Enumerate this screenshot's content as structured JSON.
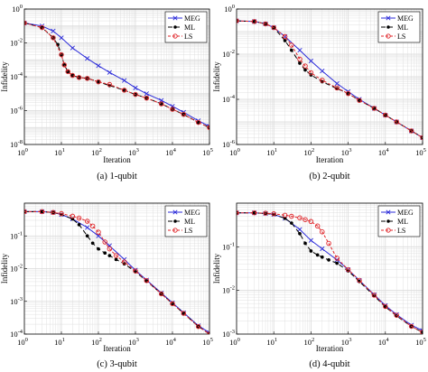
{
  "colors": {
    "MEG": "#2b2bd9",
    "ML": "#000000",
    "LS": "#e0262a",
    "grid": "#d9d9d9"
  },
  "chart_data": [
    {
      "type": "line",
      "caption": "(a)  1-qubit",
      "xlabel": "Iteration",
      "ylabel": "Infidelity",
      "xscale": "log",
      "yscale": "log",
      "xlim": [
        1,
        100000
      ],
      "ylim": [
        1e-08,
        1
      ],
      "xticks": [
        {
          "v": 1,
          "e": "0"
        },
        {
          "v": 10,
          "e": "1"
        },
        {
          "v": 100,
          "e": "2"
        },
        {
          "v": 1000,
          "e": "3"
        },
        {
          "v": 10000,
          "e": "4"
        },
        {
          "v": 100000,
          "e": "5"
        }
      ],
      "yticks": [
        {
          "v": 1,
          "e": "0"
        },
        {
          "v": 0.01,
          "e": "-2"
        },
        {
          "v": 0.0001,
          "e": "-4"
        },
        {
          "v": 1e-06,
          "e": "-6"
        },
        {
          "v": 1e-08,
          "e": "-8"
        }
      ],
      "grid": true,
      "legend_position": "top-right",
      "series": [
        {
          "name": "MEG",
          "key": "MEG",
          "marker": "x",
          "dash": "",
          "x": [
            1,
            3,
            6,
            10,
            20,
            50,
            100,
            200,
            500,
            1000,
            2000,
            5000,
            10000,
            20000,
            50000,
            100000
          ],
          "y": [
            0.15,
            0.1,
            0.05,
            0.02,
            0.005,
            0.0012,
            0.00045,
            0.00018,
            6e-05,
            2.2e-05,
            1e-05,
            4e-06,
            1.8e-06,
            8e-07,
            2.5e-07,
            1.2e-07
          ]
        },
        {
          "name": "ML",
          "key": "ML",
          "marker": "dot",
          "dash": "5,3",
          "x": [
            1,
            3,
            6,
            8,
            10,
            12,
            15,
            20,
            30,
            50,
            100,
            200,
            500,
            1000,
            2000,
            5000,
            10000,
            20000,
            50000,
            100000
          ],
          "y": [
            0.15,
            0.08,
            0.02,
            0.008,
            0.002,
            0.0005,
            0.0002,
            0.00012,
            9e-05,
            8e-05,
            5e-05,
            3e-05,
            1.6e-05,
            9e-06,
            5.5e-06,
            2.5e-06,
            1.2e-06,
            6e-07,
            2e-07,
            1e-07
          ]
        },
        {
          "name": "LS",
          "key": "LS",
          "marker": "circle",
          "dash": "3,2",
          "x": [
            1,
            3,
            6,
            10,
            12,
            15,
            20,
            30,
            50,
            100,
            200,
            500,
            1000,
            2000,
            5000,
            10000,
            20000,
            50000,
            100000
          ],
          "y": [
            0.15,
            0.08,
            0.02,
            0.002,
            0.0005,
            0.0002,
            0.00012,
            9e-05,
            8e-05,
            5e-05,
            3.5e-05,
            1.6e-05,
            9e-06,
            5.5e-06,
            2.5e-06,
            1.2e-06,
            6e-07,
            2e-07,
            1e-07
          ]
        }
      ]
    },
    {
      "type": "line",
      "caption": "(b)  2-qubit",
      "xlabel": "Iteration",
      "ylabel": "Infidelity",
      "xscale": "log",
      "yscale": "log",
      "xlim": [
        1,
        100000
      ],
      "ylim": [
        1e-06,
        1
      ],
      "xticks": [
        {
          "v": 1,
          "e": "0"
        },
        {
          "v": 10,
          "e": "1"
        },
        {
          "v": 100,
          "e": "2"
        },
        {
          "v": 1000,
          "e": "3"
        },
        {
          "v": 10000,
          "e": "4"
        },
        {
          "v": 100000,
          "e": "5"
        }
      ],
      "yticks": [
        {
          "v": 1,
          "e": "0"
        },
        {
          "v": 0.01,
          "e": "-2"
        },
        {
          "v": 0.0001,
          "e": "-4"
        },
        {
          "v": 1e-06,
          "e": "-6"
        }
      ],
      "grid": true,
      "legend_position": "top-right",
      "series": [
        {
          "name": "MEG",
          "key": "MEG",
          "marker": "x",
          "dash": "",
          "x": [
            1,
            3,
            6,
            10,
            20,
            50,
            100,
            200,
            500,
            1000,
            2000,
            5000,
            10000,
            20000,
            50000,
            100000
          ],
          "y": [
            0.3,
            0.28,
            0.22,
            0.15,
            0.06,
            0.015,
            0.005,
            0.0018,
            0.0005,
            0.00022,
            0.0001,
            4e-05,
            2e-05,
            1e-05,
            4e-06,
            2e-06
          ]
        },
        {
          "name": "ML",
          "key": "ML",
          "marker": "dot",
          "dash": "5,3",
          "x": [
            1,
            3,
            6,
            10,
            20,
            30,
            50,
            70,
            100,
            200,
            500,
            1000,
            2000,
            5000,
            10000,
            20000,
            50000,
            100000
          ],
          "y": [
            0.3,
            0.28,
            0.22,
            0.15,
            0.04,
            0.015,
            0.004,
            0.002,
            0.0012,
            0.0006,
            0.0003,
            0.00018,
            9e-05,
            4e-05,
            2e-05,
            1e-05,
            4e-06,
            2e-06
          ]
        },
        {
          "name": "LS",
          "key": "LS",
          "marker": "circle",
          "dash": "3,2",
          "x": [
            1,
            3,
            6,
            10,
            20,
            30,
            50,
            70,
            100,
            200,
            500,
            1000,
            2000,
            5000,
            10000,
            20000,
            50000,
            100000
          ],
          "y": [
            0.3,
            0.28,
            0.22,
            0.15,
            0.06,
            0.025,
            0.006,
            0.003,
            0.0015,
            0.0007,
            0.00032,
            0.00018,
            9e-05,
            4e-05,
            2e-05,
            1e-05,
            4e-06,
            2e-06
          ]
        }
      ]
    },
    {
      "type": "line",
      "caption": "(c)  3-qubit",
      "xlabel": "Iteration",
      "ylabel": "Infidelity",
      "xscale": "log",
      "yscale": "log",
      "xlim": [
        1,
        100000
      ],
      "ylim": [
        0.0001,
        1
      ],
      "xticks": [
        {
          "v": 1,
          "e": "0"
        },
        {
          "v": 10,
          "e": "1"
        },
        {
          "v": 100,
          "e": "2"
        },
        {
          "v": 1000,
          "e": "3"
        },
        {
          "v": 10000,
          "e": "4"
        },
        {
          "v": 100000,
          "e": "5"
        }
      ],
      "yticks": [
        {
          "v": 0.1,
          "e": "-1"
        },
        {
          "v": 0.01,
          "e": "-2"
        },
        {
          "v": 0.001,
          "e": "-3"
        },
        {
          "v": 0.0001,
          "e": "-4"
        }
      ],
      "grid": true,
      "legend_position": "top-right",
      "series": [
        {
          "name": "MEG",
          "key": "MEG",
          "marker": "x",
          "dash": "",
          "x": [
            1,
            3,
            6,
            10,
            20,
            50,
            100,
            200,
            500,
            1000,
            2000,
            5000,
            10000,
            20000,
            50000,
            100000
          ],
          "y": [
            0.55,
            0.55,
            0.52,
            0.45,
            0.33,
            0.18,
            0.1,
            0.05,
            0.019,
            0.009,
            0.0045,
            0.0018,
            0.0009,
            0.00045,
            0.00018,
            0.00011
          ]
        },
        {
          "name": "ML",
          "key": "ML",
          "marker": "dot",
          "dash": "5,3",
          "x": [
            1,
            3,
            6,
            10,
            20,
            30,
            50,
            70,
            100,
            150,
            200,
            300,
            500,
            1000,
            2000,
            5000,
            10000,
            20000,
            50000,
            100000
          ],
          "y": [
            0.55,
            0.55,
            0.52,
            0.45,
            0.33,
            0.22,
            0.1,
            0.06,
            0.04,
            0.03,
            0.025,
            0.019,
            0.014,
            0.008,
            0.0042,
            0.0017,
            0.00085,
            0.00043,
            0.00017,
            0.0001
          ]
        },
        {
          "name": "LS",
          "key": "LS",
          "marker": "circle",
          "dash": "3,2",
          "x": [
            1,
            3,
            6,
            10,
            20,
            30,
            50,
            70,
            100,
            150,
            200,
            300,
            500,
            1000,
            2000,
            5000,
            10000,
            20000,
            50000,
            100000
          ],
          "y": [
            0.55,
            0.55,
            0.52,
            0.48,
            0.4,
            0.35,
            0.28,
            0.2,
            0.13,
            0.065,
            0.04,
            0.025,
            0.016,
            0.0085,
            0.0043,
            0.0017,
            0.00085,
            0.00043,
            0.00017,
            0.0001
          ]
        }
      ]
    },
    {
      "type": "line",
      "caption": "(d)  4-qubit",
      "xlabel": "Iteration",
      "ylabel": "Infidelity",
      "xscale": "log",
      "yscale": "log",
      "xlim": [
        1,
        100000
      ],
      "ylim": [
        0.001,
        1
      ],
      "xticks": [
        {
          "v": 1,
          "e": "0"
        },
        {
          "v": 10,
          "e": "1"
        },
        {
          "v": 100,
          "e": "2"
        },
        {
          "v": 1000,
          "e": "3"
        },
        {
          "v": 10000,
          "e": "4"
        },
        {
          "v": 100000,
          "e": "5"
        }
      ],
      "yticks": [
        {
          "v": 0.1,
          "e": "-1"
        },
        {
          "v": 0.01,
          "e": "-2"
        },
        {
          "v": 0.001,
          "e": "-3"
        }
      ],
      "grid": true,
      "legend_position": "top-right",
      "series": [
        {
          "name": "MEG",
          "key": "MEG",
          "marker": "x",
          "dash": "",
          "x": [
            1,
            3,
            6,
            10,
            20,
            50,
            100,
            200,
            500,
            1000,
            2000,
            5000,
            10000,
            20000,
            50000,
            100000
          ],
          "y": [
            0.6,
            0.6,
            0.58,
            0.55,
            0.45,
            0.25,
            0.14,
            0.09,
            0.05,
            0.03,
            0.017,
            0.008,
            0.0045,
            0.0028,
            0.0016,
            0.0012
          ]
        },
        {
          "name": "ML",
          "key": "ML",
          "marker": "dot",
          "dash": "5,3",
          "x": [
            1,
            3,
            6,
            10,
            20,
            30,
            50,
            70,
            100,
            150,
            200,
            300,
            500,
            1000,
            2000,
            5000,
            10000,
            20000,
            50000,
            100000
          ],
          "y": [
            0.6,
            0.6,
            0.58,
            0.55,
            0.45,
            0.35,
            0.2,
            0.12,
            0.08,
            0.065,
            0.058,
            0.05,
            0.042,
            0.028,
            0.016,
            0.0075,
            0.0042,
            0.0026,
            0.0015,
            0.0011
          ]
        },
        {
          "name": "LS",
          "key": "LS",
          "marker": "circle",
          "dash": "3,2",
          "x": [
            1,
            3,
            6,
            10,
            20,
            30,
            50,
            70,
            100,
            150,
            200,
            300,
            500,
            1000,
            2000,
            5000,
            10000,
            20000,
            50000,
            100000
          ],
          "y": [
            0.6,
            0.6,
            0.59,
            0.57,
            0.53,
            0.5,
            0.46,
            0.42,
            0.38,
            0.3,
            0.22,
            0.12,
            0.055,
            0.03,
            0.017,
            0.0078,
            0.0043,
            0.0027,
            0.0015,
            0.0011
          ]
        }
      ]
    }
  ]
}
